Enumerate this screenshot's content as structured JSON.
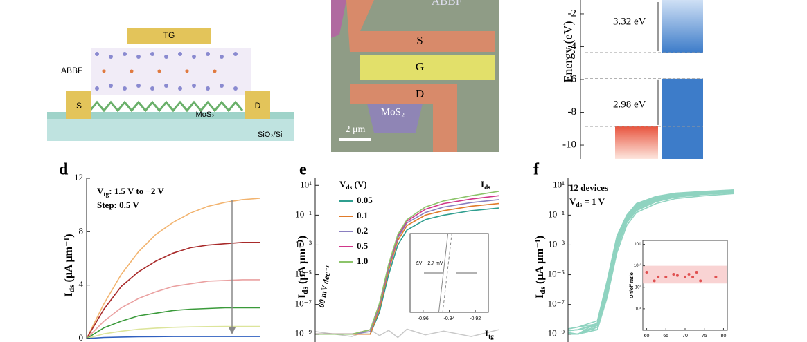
{
  "panel_a": {
    "tg": "TG",
    "abbf": "ABBF",
    "source": "S",
    "drain": "D",
    "channel": "MoS₂",
    "substrate": "SiO₂/Si"
  },
  "panel_b": {
    "top": "ABBF",
    "source": "S",
    "gate": "G",
    "drain": "D",
    "channel": "MoS₂",
    "scale": "2 μm"
  },
  "chart_data": [
    {
      "type": "band-diagram",
      "ylabel": "Energy (eV)",
      "ylim": [
        -10.84,
        -1.16
      ],
      "yticks": [
        -2,
        -4,
        -6,
        -8,
        -10
      ],
      "levels": [
        -4.36,
        -5.95,
        -8.86
      ],
      "annotations": [
        "3.32 eV",
        "2.98 eV"
      ],
      "colors": [
        "#3d7cc9",
        "#e8553f"
      ]
    },
    {
      "type": "line",
      "letter": "d",
      "ylabel": [
        "I",
        "ds",
        " (μA μm⁻¹)"
      ],
      "ylim": [
        0,
        12
      ],
      "yticks": [
        0,
        4,
        8,
        12
      ],
      "xlim": [
        0,
        1
      ],
      "annotations": [
        [
          "V",
          "tg",
          ": 1.5 V to −2 V"
        ],
        [
          "Step: 0.5 V"
        ]
      ],
      "x": [
        0,
        0.1,
        0.2,
        0.3,
        0.4,
        0.5,
        0.6,
        0.7,
        0.8,
        0.9,
        1
      ],
      "series": [
        {
          "color": "#f2b36e",
          "values": [
            0,
            2.6,
            4.8,
            6.5,
            7.8,
            8.7,
            9.4,
            9.9,
            10.2,
            10.4,
            10.5
          ]
        },
        {
          "color": "#a82a2a",
          "values": [
            0,
            2.2,
            3.9,
            5.0,
            5.8,
            6.4,
            6.8,
            7.0,
            7.1,
            7.2,
            7.2
          ]
        },
        {
          "color": "#eaa0a0",
          "values": [
            0,
            1.3,
            2.3,
            3.0,
            3.5,
            3.9,
            4.1,
            4.3,
            4.35,
            4.4,
            4.4
          ]
        },
        {
          "color": "#3a9a3a",
          "values": [
            0,
            0.8,
            1.3,
            1.7,
            1.9,
            2.1,
            2.2,
            2.25,
            2.3,
            2.3,
            2.3
          ]
        },
        {
          "color": "#dce49a",
          "values": [
            0,
            0.35,
            0.55,
            0.7,
            0.78,
            0.84,
            0.87,
            0.89,
            0.9,
            0.9,
            0.9
          ]
        },
        {
          "color": "#3060c0",
          "values": [
            0,
            0.08,
            0.11,
            0.13,
            0.14,
            0.15,
            0.15,
            0.15,
            0.15,
            0.15,
            0.15
          ]
        }
      ]
    },
    {
      "type": "line",
      "letter": "e",
      "log": true,
      "ylabel": [
        "I",
        "ds",
        " (μA μm⁻¹)"
      ],
      "ylim": [
        3e-10,
        30
      ],
      "xlim": [
        0,
        1
      ],
      "yticks": [
        {
          "value": 10,
          "label": "10¹"
        },
        {
          "value": 0.1,
          "label": "10⁻¹"
        },
        {
          "value": 0.001,
          "label": "10⁻³"
        },
        {
          "value": 1e-05,
          "label": "10⁻⁵"
        },
        {
          "value": 1e-07,
          "label": "10⁻⁷"
        },
        {
          "value": 1e-09,
          "label": "10⁻⁹"
        }
      ],
      "legend_title": [
        "V",
        "ds",
        " (V)"
      ],
      "annotations": [
        "60 mV dec⁻¹"
      ],
      "curve_labels": [
        [
          "I",
          "ds"
        ],
        [
          "I",
          "tg"
        ]
      ],
      "x": [
        0,
        0.2,
        0.3,
        0.35,
        0.4,
        0.45,
        0.5,
        0.6,
        0.7,
        0.85,
        1
      ],
      "series": [
        {
          "name": "0.05",
          "color": "#2f9e8f",
          "values": [
            1e-09,
            1e-09,
            1e-09,
            3e-08,
            1e-05,
            0.001,
            0.01,
            0.05,
            0.1,
            0.2,
            0.3
          ]
        },
        {
          "name": "0.1",
          "color": "#e07b2a",
          "values": [
            1e-09,
            1e-09,
            1e-09,
            5e-08,
            2e-05,
            0.002,
            0.02,
            0.1,
            0.2,
            0.4,
            0.6
          ]
        },
        {
          "name": "0.2",
          "color": "#8a7fc0",
          "values": [
            1e-09,
            1e-09,
            1.5e-09,
            8e-08,
            3e-05,
            0.003,
            0.03,
            0.15,
            0.35,
            0.7,
            1.1
          ]
        },
        {
          "name": "0.5",
          "color": "#d0368a",
          "values": [
            1e-09,
            1e-09,
            2e-09,
            1e-07,
            4e-05,
            0.004,
            0.04,
            0.25,
            0.6,
            1.2,
            2
          ]
        },
        {
          "name": "1.0",
          "color": "#8cc46a",
          "values": [
            1e-09,
            1e-09,
            2e-09,
            1.2e-07,
            5e-05,
            0.005,
            0.05,
            0.35,
            0.9,
            2,
            4
          ]
        }
      ],
      "gate_current": {
        "color": "#c8c8c8",
        "values": [
          1.5e-09,
          7e-10,
          2e-09,
          8e-10,
          1.8e-09,
          6e-10,
          2.2e-09,
          9e-10,
          1.6e-09,
          7e-10,
          2e-09
        ]
      }
    },
    {
      "type": "line",
      "letter": "f",
      "log": true,
      "ylabel": [
        "I",
        "ds",
        " (μA μm⁻¹)"
      ],
      "ylim": [
        3e-10,
        30
      ],
      "xlim": [
        0.15,
        1
      ],
      "color": "#8fd3c0",
      "yticks": [
        {
          "value": 10,
          "label": "10¹"
        },
        {
          "value": 0.1,
          "label": "10⁻¹"
        },
        {
          "value": 0.001,
          "label": "10⁻³"
        },
        {
          "value": 1e-05,
          "label": "10⁻⁵"
        },
        {
          "value": 1e-07,
          "label": "10⁻⁷"
        },
        {
          "value": 1e-09,
          "label": "10⁻⁹"
        }
      ],
      "annotations": [
        [
          "12 devices"
        ],
        [
          "V",
          "ds",
          " = 1 V"
        ]
      ],
      "x": [
        0,
        0.2,
        0.3,
        0.35,
        0.4,
        0.45,
        0.5,
        0.6,
        0.7,
        0.85,
        1
      ],
      "series": [
        {
          "values": [
            1e-09,
            2e-09,
            5e-09,
            2e-06,
            0.002,
            0.08,
            0.5,
            1.5,
            2.5,
            3.5,
            4.5
          ]
        },
        {
          "values": [
            1e-09,
            1e-09,
            3e-09,
            1e-06,
            0.001,
            0.05,
            0.3,
            1,
            2,
            3,
            4
          ]
        },
        {
          "values": [
            2e-09,
            1e-09,
            2e-09,
            5e-07,
            0.0006,
            0.03,
            0.2,
            0.8,
            1.6,
            2.5,
            3.2
          ]
        },
        {
          "values": [
            1e-09,
            3e-09,
            8e-09,
            4e-06,
            0.004,
            0.1,
            0.6,
            1.8,
            3,
            4,
            5
          ]
        },
        {
          "values": [
            1e-09,
            1e-09,
            2e-09,
            3e-07,
            0.0003,
            0.02,
            0.15,
            0.6,
            1.3,
            2,
            2.8
          ]
        },
        {
          "values": [
            1e-09,
            2e-09,
            4e-09,
            1.5e-06,
            0.0015,
            0.06,
            0.4,
            1.2,
            2.2,
            3.2,
            4
          ]
        },
        {
          "values": [
            3e-09,
            1e-09,
            3e-09,
            8e-07,
            0.0008,
            0.04,
            0.25,
            0.9,
            1.8,
            2.7,
            3.5
          ]
        },
        {
          "values": [
            1e-09,
            1e-09,
            6e-09,
            3e-06,
            0.003,
            0.09,
            0.55,
            1.6,
            2.8,
            3.8,
            4.8
          ]
        },
        {
          "values": [
            1e-09,
            2e-09,
            2e-09,
            6e-07,
            0.0005,
            0.035,
            0.22,
            0.85,
            1.7,
            2.6,
            3.3
          ]
        },
        {
          "values": [
            2e-09,
            1e-09,
            4e-09,
            2e-06,
            0.0025,
            0.07,
            0.45,
            1.4,
            2.4,
            3.4,
            4.2
          ]
        },
        {
          "values": [
            1e-09,
            1e-09,
            3e-09,
            1.2e-06,
            0.0012,
            0.055,
            0.35,
            1.1,
            2.1,
            3.1,
            3.9
          ]
        },
        {
          "values": [
            1e-09,
            3e-09,
            5e-09,
            2.5e-06,
            0.002,
            0.075,
            0.5,
            1.5,
            2.6,
            3.6,
            4.6
          ]
        }
      ]
    },
    {
      "type": "scatter",
      "log": true,
      "ylabel": "On/off ratio",
      "xlim": [
        59,
        81
      ],
      "xticks": [
        60,
        65,
        70,
        75,
        80
      ],
      "ylim": [
        10000000.0,
        150000000000.0
      ],
      "yticks": [
        {
          "value": 100000000000.0,
          "label": "10¹¹"
        },
        {
          "value": 10000000000.0,
          "label": "10¹⁰"
        },
        {
          "value": 1000000000.0,
          "label": "10⁹"
        },
        {
          "value": 100000000.0,
          "label": "10⁸"
        }
      ],
      "range": [
        1500000000.0,
        10000000000.0
      ],
      "color": "#e05050",
      "x": [
        60,
        62,
        63,
        65,
        67,
        68,
        70,
        71,
        72,
        73,
        74,
        78
      ],
      "values": [
        5000000000.0,
        2000000000.0,
        3000000000.0,
        3000000000.0,
        4000000000.0,
        3500000000.0,
        3000000000.0,
        4000000000.0,
        3000000000.0,
        5000000000.0,
        2000000000.0,
        3000000000.0
      ]
    },
    {
      "type": "line",
      "annotation": "ΔV ~ 2.7 mV",
      "xlim": [
        -0.97,
        -0.91
      ],
      "xticks": [
        -0.96,
        -0.94,
        -0.92
      ],
      "ylim": [
        0,
        1
      ],
      "x": [
        -0.948,
        -0.941
      ],
      "series": [
        {
          "color": "#888888",
          "values": [
            0,
            1
          ]
        },
        {
          "color": "#888888",
          "dash": true,
          "values": [
            0,
            1
          ]
        }
      ],
      "x2": [
        -0.945,
        -0.938
      ]
    }
  ]
}
